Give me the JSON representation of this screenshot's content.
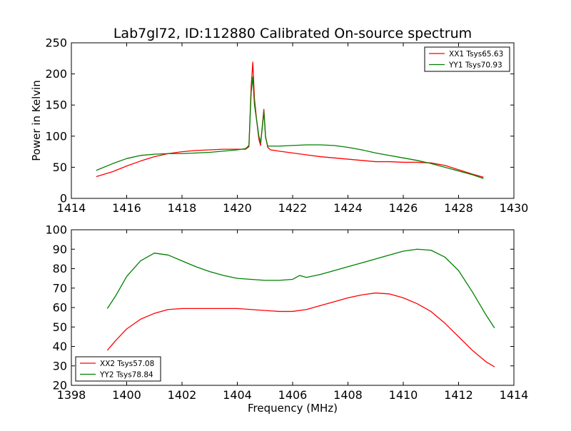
{
  "figure_title": "Lab7gl72, ID:112880 Calibrated On-source spectrum",
  "chart_data": [
    {
      "type": "line",
      "ylabel": "Power in Kelvin",
      "xlabel": "",
      "xlim": [
        1414,
        1430
      ],
      "ylim": [
        0,
        250
      ],
      "xticks": [
        1414,
        1416,
        1418,
        1420,
        1422,
        1424,
        1426,
        1428,
        1430
      ],
      "yticks": [
        0,
        50,
        100,
        150,
        200,
        250
      ],
      "legend_position": "top-right",
      "series": [
        {
          "name": "XX1 Tsys65.63",
          "color": "#ff0000",
          "x": [
            1414.9,
            1415.5,
            1416.0,
            1416.5,
            1417.0,
            1417.5,
            1418.0,
            1418.5,
            1419.0,
            1419.5,
            1420.0,
            1420.3,
            1420.42,
            1420.5,
            1420.56,
            1420.62,
            1420.7,
            1420.78,
            1420.84,
            1420.9,
            1420.96,
            1421.02,
            1421.1,
            1421.2,
            1421.5,
            1422.0,
            1422.5,
            1423.0,
            1423.5,
            1424.0,
            1424.5,
            1425.0,
            1425.5,
            1426.0,
            1426.5,
            1427.0,
            1427.5,
            1428.0,
            1428.5,
            1428.9
          ],
          "y": [
            35,
            43,
            52,
            60,
            67,
            72,
            75,
            77,
            78,
            79,
            79,
            79,
            83,
            180,
            219,
            160,
            125,
            95,
            85,
            115,
            143,
            100,
            82,
            78,
            76,
            73,
            70,
            67,
            65,
            63,
            61,
            59,
            59,
            58,
            58,
            57,
            53,
            46,
            39,
            34
          ]
        },
        {
          "name": "YY1 Tsys70.93",
          "color": "#008000",
          "x": [
            1414.9,
            1415.5,
            1416.0,
            1416.5,
            1417.0,
            1417.5,
            1418.0,
            1418.5,
            1419.0,
            1419.5,
            1420.0,
            1420.3,
            1420.42,
            1420.5,
            1420.56,
            1420.62,
            1420.7,
            1420.78,
            1420.84,
            1420.9,
            1420.96,
            1421.02,
            1421.1,
            1421.5,
            1422.0,
            1422.5,
            1423.0,
            1423.5,
            1424.0,
            1424.5,
            1425.0,
            1425.5,
            1426.0,
            1426.5,
            1427.0,
            1427.5,
            1428.0,
            1428.5,
            1428.9
          ],
          "y": [
            45,
            56,
            64,
            69,
            71,
            72,
            72,
            73,
            74,
            76,
            78,
            80,
            85,
            170,
            195,
            150,
            125,
            100,
            90,
            112,
            140,
            98,
            84,
            84,
            85,
            86,
            86,
            85,
            82,
            78,
            73,
            69,
            65,
            61,
            56,
            50,
            44,
            38,
            32
          ]
        }
      ]
    },
    {
      "type": "line",
      "ylabel": "",
      "xlabel": "Frequency (MHz)",
      "xlim": [
        1398,
        1414
      ],
      "ylim": [
        20,
        100
      ],
      "xticks": [
        1398,
        1400,
        1402,
        1404,
        1406,
        1408,
        1410,
        1412,
        1414
      ],
      "yticks": [
        20,
        30,
        40,
        50,
        60,
        70,
        80,
        90,
        100
      ],
      "legend_position": "lower-left",
      "series": [
        {
          "name": "XX2 Tsys57.08",
          "color": "#ff0000",
          "x": [
            1399.3,
            1399.6,
            1400.0,
            1400.5,
            1401.0,
            1401.5,
            1402.0,
            1402.5,
            1403.0,
            1403.5,
            1404.0,
            1404.5,
            1405.0,
            1405.5,
            1406.0,
            1406.5,
            1407.0,
            1407.5,
            1408.0,
            1408.5,
            1409.0,
            1409.5,
            1410.0,
            1410.5,
            1411.0,
            1411.5,
            1412.0,
            1412.5,
            1413.0,
            1413.3
          ],
          "y": [
            38,
            43,
            49,
            54,
            57,
            59,
            59.5,
            59.5,
            59.5,
            59.5,
            59.5,
            59,
            58.5,
            58,
            58,
            59,
            61,
            63,
            65,
            66.5,
            67.5,
            67,
            65,
            62,
            58,
            52,
            45,
            38,
            32,
            29.5
          ]
        },
        {
          "name": "YY2 Tsys78.84",
          "color": "#008000",
          "x": [
            1399.3,
            1399.6,
            1400.0,
            1400.5,
            1401.0,
            1401.5,
            1402.0,
            1402.5,
            1403.0,
            1403.5,
            1404.0,
            1404.5,
            1405.0,
            1405.5,
            1406.0,
            1406.25,
            1406.5,
            1407.0,
            1407.5,
            1408.0,
            1408.5,
            1409.0,
            1409.5,
            1410.0,
            1410.5,
            1411.0,
            1411.5,
            1412.0,
            1412.5,
            1413.0,
            1413.3
          ],
          "y": [
            59.5,
            66,
            76,
            84,
            88,
            87,
            84,
            81,
            78.5,
            76.5,
            75,
            74.5,
            74,
            74,
            74.5,
            76.5,
            75.5,
            77,
            79,
            81,
            83,
            85,
            87,
            89,
            90,
            89.5,
            86,
            79,
            68,
            56,
            49.5
          ]
        }
      ]
    }
  ]
}
